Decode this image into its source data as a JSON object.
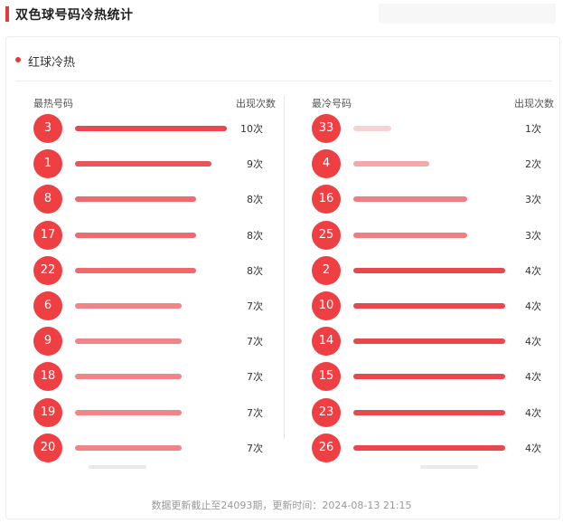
{
  "header": {
    "title": "双色球号码冷热统计"
  },
  "section": {
    "title": "红球冷热"
  },
  "hot": {
    "label_number": "最热号码",
    "label_count": "出现次数",
    "max_count": 10,
    "rows": [
      {
        "number": "3",
        "count_text": "10次",
        "count": 10,
        "color": "#e8474b"
      },
      {
        "number": "1",
        "count_text": "9次",
        "count": 9,
        "color": "#eb5458"
      },
      {
        "number": "8",
        "count_text": "8次",
        "count": 8,
        "color": "#ee6a6d"
      },
      {
        "number": "17",
        "count_text": "8次",
        "count": 8,
        "color": "#ee6a6d"
      },
      {
        "number": "22",
        "count_text": "8次",
        "count": 8,
        "color": "#ee6a6d"
      },
      {
        "number": "6",
        "count_text": "7次",
        "count": 7,
        "color": "#f08587"
      },
      {
        "number": "9",
        "count_text": "7次",
        "count": 7,
        "color": "#f08587"
      },
      {
        "number": "18",
        "count_text": "7次",
        "count": 7,
        "color": "#f08587"
      },
      {
        "number": "19",
        "count_text": "7次",
        "count": 7,
        "color": "#f08587"
      },
      {
        "number": "20",
        "count_text": "7次",
        "count": 7,
        "color": "#f08587"
      }
    ]
  },
  "cold": {
    "label_number": "最冷号码",
    "label_count": "出现次数",
    "max_count": 4,
    "rows": [
      {
        "number": "33",
        "count_text": "1次",
        "count": 1,
        "color": "#f8d2d3"
      },
      {
        "number": "4",
        "count_text": "2次",
        "count": 2,
        "color": "#f5a7a9"
      },
      {
        "number": "16",
        "count_text": "3次",
        "count": 3,
        "color": "#ef7f81"
      },
      {
        "number": "25",
        "count_text": "3次",
        "count": 3,
        "color": "#ef7f81"
      },
      {
        "number": "2",
        "count_text": "4次",
        "count": 4,
        "color": "#e8474b"
      },
      {
        "number": "10",
        "count_text": "4次",
        "count": 4,
        "color": "#e8474b"
      },
      {
        "number": "14",
        "count_text": "4次",
        "count": 4,
        "color": "#e8474b"
      },
      {
        "number": "15",
        "count_text": "4次",
        "count": 4,
        "color": "#e8474b"
      },
      {
        "number": "23",
        "count_text": "4次",
        "count": 4,
        "color": "#e8474b"
      },
      {
        "number": "26",
        "count_text": "4次",
        "count": 4,
        "color": "#e8474b"
      }
    ]
  },
  "footer": {
    "text": "数据更新截止至24093期，更新时间：2024-08-13 21:15"
  },
  "colors": {
    "accent": "#e23b3b",
    "ball": "#ee3f43"
  }
}
